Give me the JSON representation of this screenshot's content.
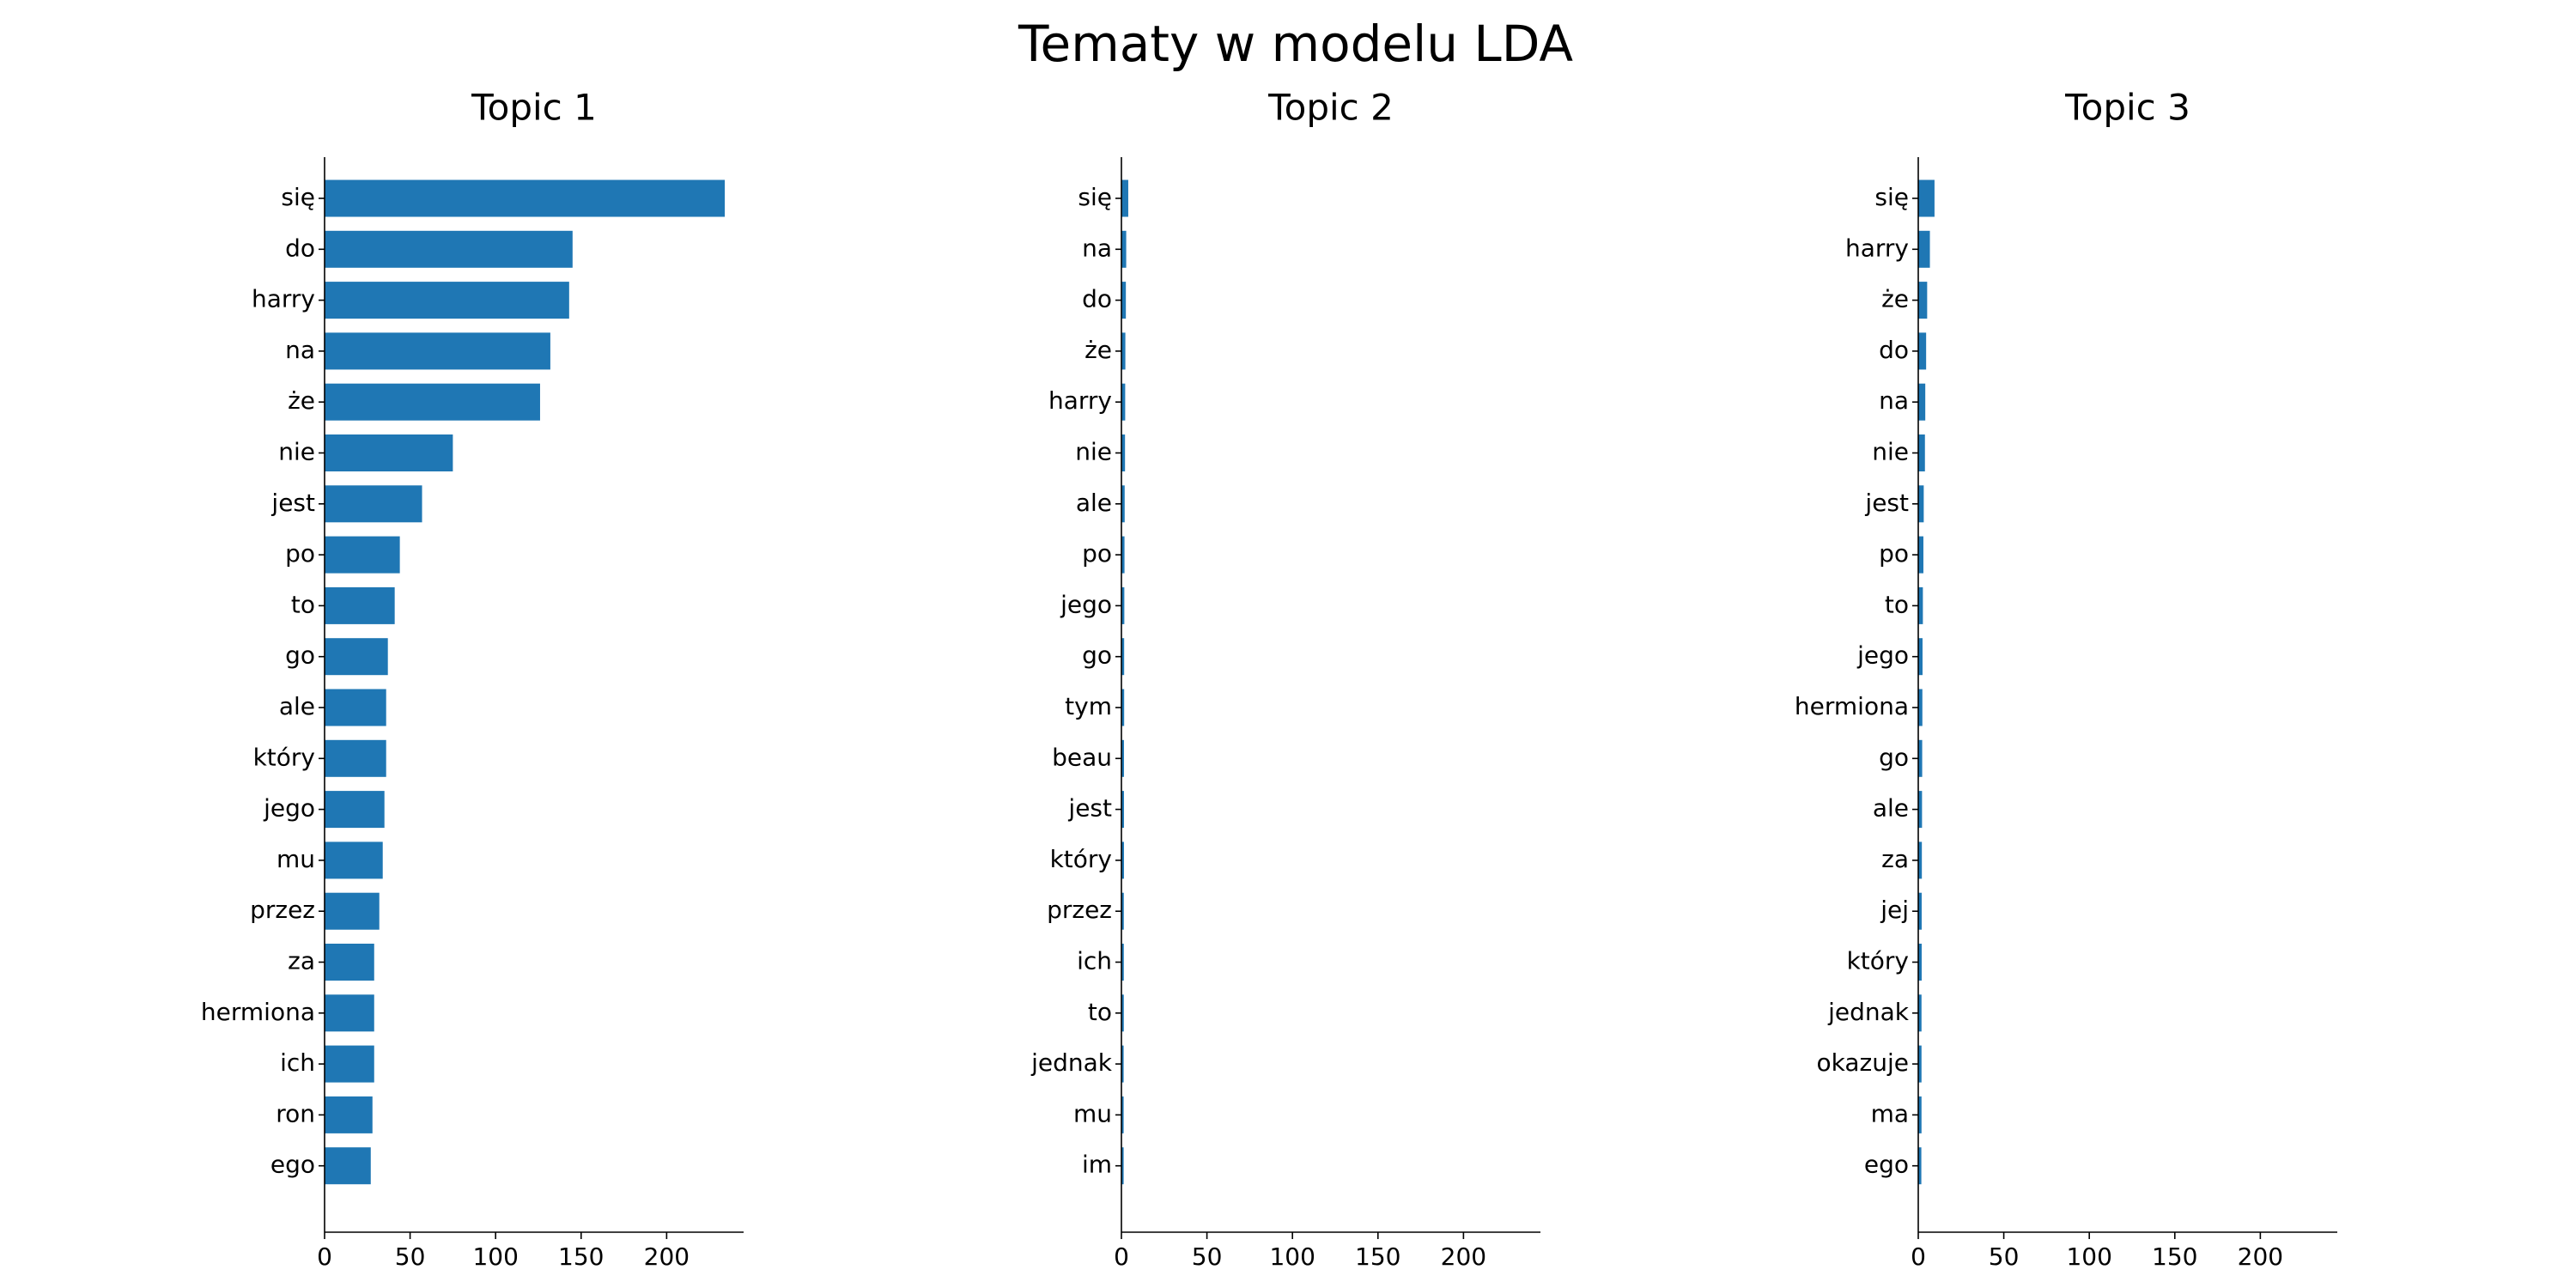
{
  "figure_title": "Tematy w modelu LDA",
  "bar_color": "#1f77b4",
  "chart_data": [
    {
      "type": "bar",
      "orientation": "horizontal",
      "title": "Topic 1",
      "xlabel": "",
      "ylabel": "",
      "xlim": [
        0,
        245
      ],
      "xticks": [
        0,
        50,
        100,
        150,
        200
      ],
      "grid": false,
      "categories": [
        "się",
        "do",
        "harry",
        "na",
        "że",
        "nie",
        "jest",
        "po",
        "to",
        "go",
        "ale",
        "który",
        "jego",
        "mu",
        "przez",
        "za",
        "hermiona",
        "ich",
        "ron",
        "ego"
      ],
      "values": [
        234,
        145,
        143,
        132,
        126,
        75,
        57,
        44,
        41,
        37,
        36,
        36,
        35,
        34,
        32,
        29,
        29,
        29,
        28,
        27
      ]
    },
    {
      "type": "bar",
      "orientation": "horizontal",
      "title": "Topic 2",
      "xlabel": "",
      "ylabel": "",
      "xlim": [
        0,
        245
      ],
      "xticks": [
        0,
        50,
        100,
        150,
        200
      ],
      "grid": false,
      "categories": [
        "się",
        "na",
        "do",
        "że",
        "harry",
        "nie",
        "ale",
        "po",
        "jego",
        "go",
        "tym",
        "beau",
        "jest",
        "który",
        "przez",
        "ich",
        "to",
        "jednak",
        "mu",
        "im"
      ],
      "values": [
        4.0,
        2.8,
        2.6,
        2.3,
        2.2,
        2.1,
        1.9,
        1.8,
        1.7,
        1.6,
        1.6,
        1.5,
        1.5,
        1.5,
        1.4,
        1.4,
        1.4,
        1.3,
        1.3,
        1.3
      ]
    },
    {
      "type": "bar",
      "orientation": "horizontal",
      "title": "Topic 3",
      "xlabel": "",
      "ylabel": "",
      "xlim": [
        0,
        245
      ],
      "xticks": [
        0,
        50,
        100,
        150,
        200
      ],
      "grid": false,
      "categories": [
        "się",
        "harry",
        "że",
        "do",
        "na",
        "nie",
        "jest",
        "po",
        "to",
        "jego",
        "hermiona",
        "go",
        "ale",
        "za",
        "jej",
        "który",
        "jednak",
        "okazuje",
        "ma",
        "ego"
      ],
      "values": [
        9.5,
        6.8,
        5.2,
        4.6,
        4.1,
        3.9,
        3.2,
        3.0,
        2.7,
        2.5,
        2.4,
        2.3,
        2.2,
        2.1,
        2.0,
        2.0,
        1.9,
        1.9,
        1.9,
        1.8
      ]
    }
  ]
}
